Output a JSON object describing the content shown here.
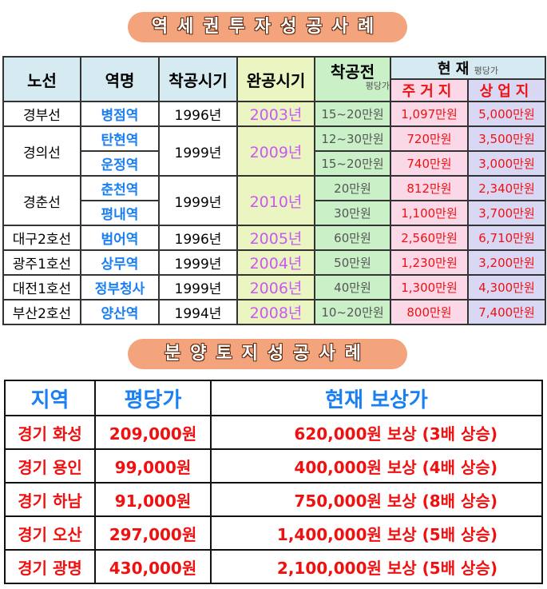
{
  "title1": "역세권투자성공사례",
  "title2": "분양토지성공사례",
  "table1": {
    "headers": {
      "line": "노선",
      "station": "역명",
      "start": "착공시기",
      "complete": "완공시기",
      "before": "착공전",
      "before_unit": "평당가",
      "current": "현 재",
      "current_unit": "평당가",
      "residential": "주거지",
      "commercial": "상업지"
    },
    "rows": [
      {
        "line": "경부선",
        "station": "병점역",
        "start": "1996년",
        "complete": "2003년",
        "before": "15~20만원",
        "res": "1,097만원",
        "com": "5,000만원"
      },
      {
        "line": "경의선",
        "station": "탄현역",
        "start": "1999년",
        "complete": "2009년",
        "before": "12~30만원",
        "res": "720만원",
        "com": "3,500만원"
      },
      {
        "station": "운정역",
        "before": "15~20만원",
        "res": "740만원",
        "com": "3,000만원"
      },
      {
        "line": "경춘선",
        "station": "춘천역",
        "start": "1999년",
        "complete": "2010년",
        "before": "20만원",
        "res": "812만원",
        "com": "2,340만원"
      },
      {
        "station": "평내역",
        "before": "30만원",
        "res": "1,100만원",
        "com": "3,700만원"
      },
      {
        "line": "대구2호선",
        "station": "범어역",
        "start": "1996년",
        "complete": "2005년",
        "before": "60만원",
        "res": "2,560만원",
        "com": "6,710만원"
      },
      {
        "line": "광주1호선",
        "station": "상무역",
        "start": "1999년",
        "complete": "2004년",
        "before": "50만원",
        "res": "1,230만원",
        "com": "3,200만원"
      },
      {
        "line": "대전1호선",
        "station": "정부청사",
        "start": "1999년",
        "complete": "2006년",
        "before": "40만원",
        "res": "1,300만원",
        "com": "4,300만원"
      },
      {
        "line": "부산2호선",
        "station": "양산역",
        "start": "1994년",
        "complete": "2008년",
        "before": "10~20만원",
        "res": "800만원",
        "com": "7,400만원"
      }
    ]
  },
  "table2": {
    "headers": [
      "지역",
      "평당가",
      "현재 보상가"
    ],
    "rows": [
      [
        "경기 화성",
        "209,000원",
        "620,000원 보상 (3배 상승)"
      ],
      [
        "경기 용인",
        "99,000원",
        "400,000원 보상 (4배 상승)"
      ],
      [
        "경기 하남",
        "91,000원",
        "750,000원 보상 (8배 상승)"
      ],
      [
        "경기 오산",
        "297,000원",
        "1,400,000원 보상 (5배 상승)"
      ],
      [
        "경기 광명",
        "430,000원",
        "2,100,000원 보상 (5배 상승)"
      ]
    ]
  }
}
